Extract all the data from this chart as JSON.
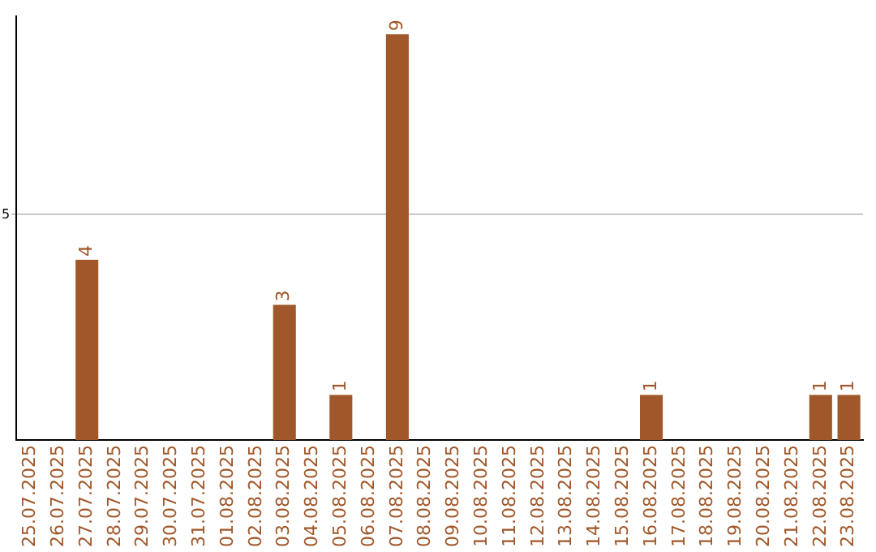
{
  "chart_data": {
    "type": "bar",
    "categories": [
      "25.07.2025",
      "26.07.2025",
      "27.07.2025",
      "28.07.2025",
      "29.07.2025",
      "30.07.2025",
      "31.07.2025",
      "01.08.2025",
      "02.08.2025",
      "03.08.2025",
      "04.08.2025",
      "05.08.2025",
      "06.08.2025",
      "07.08.2025",
      "08.08.2025",
      "09.08.2025",
      "10.08.2025",
      "11.08.2025",
      "12.08.2025",
      "13.08.2025",
      "14.08.2025",
      "15.08.2025",
      "16.08.2025",
      "17.08.2025",
      "18.08.2025",
      "19.08.2025",
      "20.08.2025",
      "21.08.2025",
      "22.08.2025",
      "23.08.2025"
    ],
    "values": [
      0,
      0,
      4,
      0,
      0,
      0,
      0,
      0,
      0,
      3,
      0,
      1,
      0,
      9,
      0,
      0,
      0,
      0,
      0,
      0,
      0,
      0,
      1,
      0,
      0,
      0,
      0,
      0,
      1,
      1
    ],
    "value_labels": [
      null,
      null,
      "4",
      null,
      null,
      null,
      null,
      null,
      null,
      "3",
      null,
      "1",
      null,
      "9",
      null,
      null,
      null,
      null,
      null,
      null,
      null,
      null,
      "1",
      null,
      null,
      null,
      null,
      null,
      "1",
      "1"
    ],
    "color": "#a0582a",
    "ylim": [
      0,
      9.4
    ],
    "yticks": [
      5
    ],
    "grid": "y",
    "legend": false
  }
}
